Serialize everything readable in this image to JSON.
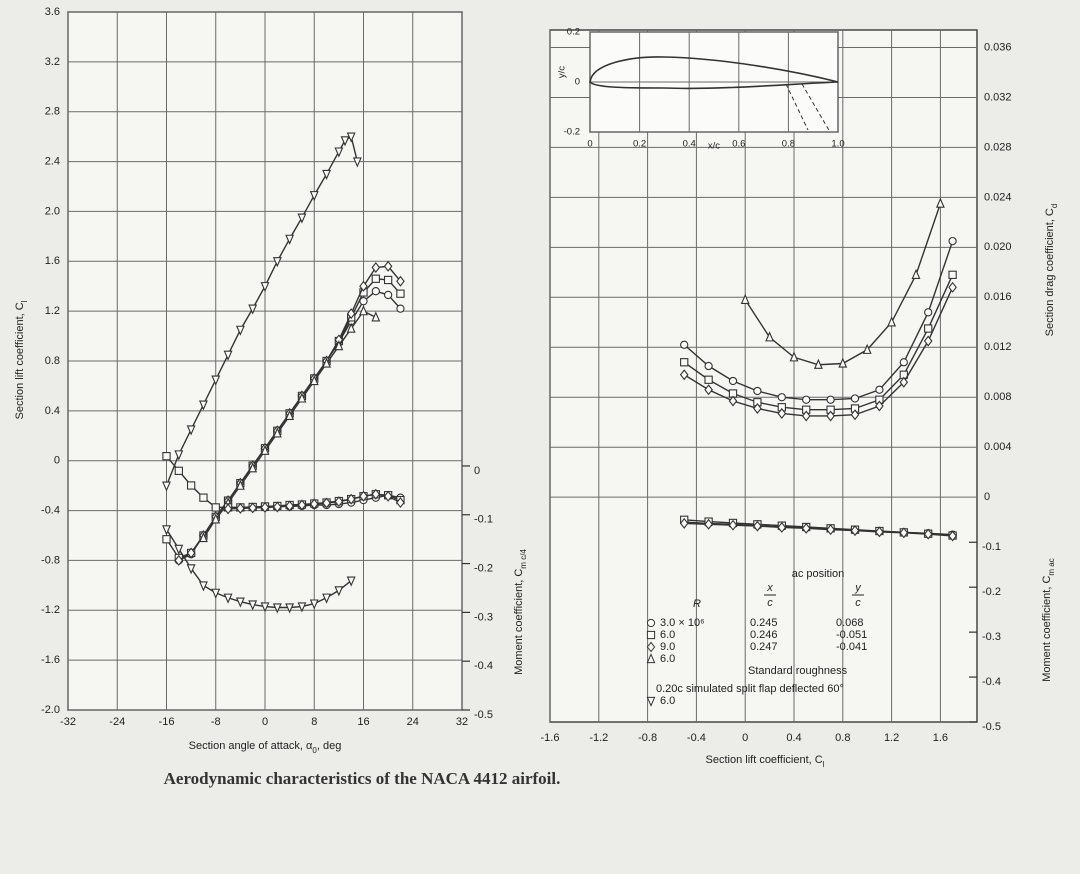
{
  "caption": "Aerodynamic characteristics of the NACA 4412 airfoil.",
  "chart_data": [
    {
      "type": "line",
      "xlabel": {
        "text": "Section angle of attack, α",
        "sub": "0",
        "tail": ", deg"
      },
      "ylabel": {
        "text": "Section lift coefficient, C",
        "sub": "l"
      },
      "y2label": {
        "text": "Moment coefficient, C",
        "sub": "m c/4"
      },
      "xlim": [
        -32,
        32
      ],
      "xticks": [
        -32,
        -24,
        -16,
        -8,
        0,
        8,
        16,
        24,
        32
      ],
      "ylim": [
        -2.0,
        3.6
      ],
      "yticks": [
        3.6,
        3.2,
        2.8,
        2.4,
        {
          "value": 2.0,
          "label": "2.0"
        },
        1.6,
        1.2,
        0.8,
        0.4,
        0,
        -0.4,
        -0.8,
        -1.2,
        -1.6,
        {
          "value": -2.0,
          "label": "-2.0"
        }
      ],
      "y2lim": [
        -0.5,
        0.93
      ],
      "y2ticks": [
        0,
        -0.1,
        -0.2,
        -0.3,
        -0.4,
        -0.5
      ],
      "grid": true,
      "series": [
        {
          "marker": "circle",
          "color": "#333333",
          "x": [
            -14,
            -12,
            -10,
            -8,
            -6,
            -4,
            -2,
            0,
            2,
            4,
            6,
            8,
            10,
            12,
            14,
            16,
            18,
            20,
            22
          ],
          "values": [
            -0.8,
            -0.75,
            -0.6,
            -0.45,
            -0.32,
            -0.18,
            -0.04,
            0.1,
            0.24,
            0.38,
            0.52,
            0.66,
            0.8,
            0.95,
            1.12,
            1.28,
            1.36,
            1.33,
            1.22
          ]
        },
        {
          "marker": "square",
          "color": "#333333",
          "x": [
            -16,
            -14,
            -12,
            -10,
            -8,
            -6,
            -4,
            -2,
            0,
            2,
            4,
            6,
            8,
            10,
            12,
            14,
            16,
            18,
            20,
            22
          ],
          "values": [
            -0.63,
            -0.78,
            -0.74,
            -0.6,
            -0.45,
            -0.32,
            -0.18,
            -0.04,
            0.1,
            0.24,
            0.38,
            0.52,
            0.66,
            0.8,
            0.96,
            1.15,
            1.35,
            1.46,
            1.45,
            1.34
          ]
        },
        {
          "marker": "diamond",
          "color": "#333333",
          "x": [
            -14,
            -12,
            -10,
            -8,
            -6,
            -4,
            -2,
            0,
            2,
            4,
            6,
            8,
            10,
            12,
            14,
            16,
            18,
            20,
            22
          ],
          "values": [
            -0.8,
            -0.74,
            -0.6,
            -0.45,
            -0.32,
            -0.18,
            -0.04,
            0.1,
            0.24,
            0.38,
            0.52,
            0.66,
            0.8,
            0.97,
            1.18,
            1.4,
            1.55,
            1.56,
            1.44
          ]
        },
        {
          "marker": "triangle",
          "color": "#333333",
          "x": [
            -10,
            -8,
            -6,
            -4,
            -2,
            0,
            2,
            4,
            6,
            8,
            10,
            12,
            14,
            16,
            18
          ],
          "values": [
            -0.62,
            -0.47,
            -0.34,
            -0.2,
            -0.06,
            0.08,
            0.22,
            0.36,
            0.5,
            0.64,
            0.78,
            0.92,
            1.06,
            1.2,
            1.15
          ]
        },
        {
          "marker": "triangle-down",
          "color": "#333333",
          "x": [
            -16,
            -14,
            -12,
            -10,
            -8,
            -6,
            -4,
            -2,
            0,
            2,
            4,
            6,
            8,
            10,
            12,
            13,
            14,
            15
          ],
          "values": [
            -0.2,
            0.05,
            0.25,
            0.45,
            0.65,
            0.85,
            1.05,
            1.22,
            1.4,
            1.6,
            1.78,
            1.95,
            2.13,
            2.3,
            2.48,
            2.57,
            2.6,
            2.4
          ]
        },
        {
          "marker": "circle",
          "color": "#333333",
          "axis": "y2",
          "x": [
            -8,
            -6,
            -4,
            -2,
            0,
            2,
            4,
            6,
            8,
            10,
            12,
            14,
            16,
            18,
            20,
            22
          ],
          "values": [
            -0.085,
            -0.085,
            -0.085,
            -0.085,
            -0.085,
            -0.083,
            -0.083,
            -0.082,
            -0.08,
            -0.08,
            -0.078,
            -0.075,
            -0.07,
            -0.065,
            -0.06,
            -0.065
          ]
        },
        {
          "marker": "square",
          "color": "#333333",
          "axis": "y2",
          "x": [
            -16,
            -14,
            -12,
            -10,
            -8,
            -6,
            -4,
            -2,
            0,
            2,
            4,
            6,
            8,
            10,
            12,
            14,
            16,
            18,
            20,
            22
          ],
          "values": [
            0.02,
            -0.01,
            -0.04,
            -0.065,
            -0.085,
            -0.085,
            -0.085,
            -0.084,
            -0.083,
            -0.082,
            -0.08,
            -0.079,
            -0.077,
            -0.075,
            -0.072,
            -0.068,
            -0.062,
            -0.058,
            -0.06,
            -0.07
          ]
        },
        {
          "marker": "diamond",
          "color": "#333333",
          "axis": "y2",
          "x": [
            -6,
            -4,
            -2,
            0,
            2,
            4,
            6,
            8,
            10,
            12,
            14,
            16,
            18,
            20,
            22
          ],
          "values": [
            -0.088,
            -0.087,
            -0.086,
            -0.085,
            -0.084,
            -0.082,
            -0.08,
            -0.078,
            -0.076,
            -0.073,
            -0.068,
            -0.062,
            -0.058,
            -0.062,
            -0.075
          ]
        },
        {
          "marker": "triangle-down",
          "color": "#333333",
          "axis": "y2",
          "x": [
            -16,
            -14,
            -12,
            -10,
            -8,
            -6,
            -4,
            -2,
            0,
            2,
            4,
            6,
            8,
            10,
            12,
            14
          ],
          "values": [
            -0.13,
            -0.17,
            -0.21,
            -0.245,
            -0.26,
            -0.27,
            -0.278,
            -0.284,
            -0.288,
            -0.29,
            -0.29,
            -0.288,
            -0.282,
            -0.27,
            -0.255,
            -0.235
          ]
        }
      ]
    },
    {
      "type": "line",
      "xlabel": {
        "text": "Section lift coefficient, C",
        "sub": "l"
      },
      "ylabel": {
        "text": "Section drag coefficient, C",
        "sub": "d"
      },
      "y2label": {
        "text": "Moment coefficient, C",
        "sub": "m ac"
      },
      "xlim": [
        -1.6,
        1.9
      ],
      "xticks": [
        -1.6,
        -1.2,
        -0.8,
        -0.4,
        0,
        0.4,
        0.8,
        1.2,
        1.6
      ],
      "ylim": [
        -0.018,
        0.0374
      ],
      "yticks": [
        0.036,
        0.032,
        0.028,
        0.024,
        {
          "value": 0.02,
          "label": "0.020"
        },
        0.016,
        0.012,
        0.008,
        0.004,
        0
      ],
      "y2lim": [
        -0.5,
        1.04
      ],
      "y2ticks": [
        -0.1,
        -0.2,
        -0.3,
        -0.4,
        -0.5
      ],
      "grid": true,
      "series": [
        {
          "marker": "circle",
          "color": "#333333",
          "x": [
            -0.5,
            -0.3,
            -0.1,
            0.1,
            0.3,
            0.5,
            0.7,
            0.9,
            1.1,
            1.3,
            1.5,
            1.7
          ],
          "values": [
            0.0122,
            0.0105,
            0.0093,
            0.0085,
            0.008,
            0.0078,
            0.0078,
            0.0079,
            0.0086,
            0.0108,
            0.0148,
            0.0205
          ]
        },
        {
          "marker": "square",
          "color": "#333333",
          "x": [
            -0.5,
            -0.3,
            -0.1,
            0.1,
            0.3,
            0.5,
            0.7,
            0.9,
            1.1,
            1.3,
            1.5,
            1.7
          ],
          "values": [
            0.0108,
            0.0094,
            0.0083,
            0.0076,
            0.0072,
            0.007,
            0.007,
            0.0071,
            0.0078,
            0.0098,
            0.0135,
            0.0178
          ]
        },
        {
          "marker": "diamond",
          "color": "#333333",
          "x": [
            -0.5,
            -0.3,
            -0.1,
            0.1,
            0.3,
            0.5,
            0.7,
            0.9,
            1.1,
            1.3,
            1.5,
            1.7
          ],
          "values": [
            0.0098,
            0.0086,
            0.0077,
            0.0071,
            0.0067,
            0.0065,
            0.0065,
            0.0066,
            0.0073,
            0.0092,
            0.0125,
            0.0168
          ]
        },
        {
          "marker": "triangle",
          "color": "#333333",
          "x": [
            0,
            0.2,
            0.4,
            0.6,
            0.8,
            1.0,
            1.2,
            1.4,
            1.6
          ],
          "values": [
            0.0158,
            0.0128,
            0.0112,
            0.0106,
            0.0107,
            0.0118,
            0.014,
            0.0178,
            0.0235
          ]
        },
        {
          "marker": "circle",
          "color": "#333333",
          "axis": "y2",
          "x": [
            -0.5,
            -0.3,
            -0.1,
            0.1,
            0.3,
            0.5,
            0.7,
            0.9,
            1.1,
            1.3,
            1.5,
            1.7
          ],
          "values": [
            -0.055,
            -0.058,
            -0.06,
            -0.063,
            -0.066,
            -0.068,
            -0.07,
            -0.073,
            -0.076,
            -0.078,
            -0.08,
            -0.083
          ]
        },
        {
          "marker": "square",
          "color": "#333333",
          "axis": "y2",
          "x": [
            -0.5,
            -0.3,
            -0.1,
            0.1,
            0.3,
            0.5,
            0.7,
            0.9,
            1.1,
            1.3,
            1.5,
            1.7
          ],
          "values": [
            -0.05,
            -0.054,
            -0.057,
            -0.06,
            -0.063,
            -0.066,
            -0.069,
            -0.072,
            -0.075,
            -0.078,
            -0.081,
            -0.085
          ]
        },
        {
          "marker": "diamond",
          "color": "#333333",
          "axis": "y2",
          "x": [
            -0.5,
            -0.3,
            -0.1,
            0.1,
            0.3,
            0.5,
            0.7,
            0.9,
            1.1,
            1.3,
            1.5,
            1.7
          ],
          "values": [
            -0.058,
            -0.06,
            -0.062,
            -0.064,
            -0.067,
            -0.069,
            -0.072,
            -0.074,
            -0.077,
            -0.079,
            -0.082,
            -0.086
          ]
        }
      ],
      "legend": {
        "title": "ac position",
        "header": {
          "r": "R",
          "x_num": "x",
          "x_den": "c",
          "y_num": "y",
          "y_den": "c"
        },
        "rows": [
          {
            "marker": "circle",
            "R": "3.0 × 10⁶",
            "x": 0.245,
            "y": 0.068
          },
          {
            "marker": "square",
            "R": "6.0",
            "x": 0.246,
            "y": -0.051
          },
          {
            "marker": "diamond",
            "R": "9.0",
            "x": 0.247,
            "y": -0.041
          },
          {
            "marker": "triangle",
            "R": "6.0",
            "note": "Standard roughness"
          },
          {
            "marker": "triangle-down",
            "R": "6.0",
            "note": "0.20c simulated split flap deflected 60°"
          }
        ]
      }
    },
    {
      "type": "line",
      "xlabel": "x/c",
      "ylabel": "y/c",
      "xlim": [
        0,
        1.0
      ],
      "xticks": [
        0,
        0.2,
        0.4,
        0.6,
        0.8,
        {
          "value": 1.0,
          "label": "1.0"
        }
      ],
      "ylim": [
        -0.2,
        0.2
      ],
      "yticks": [
        0.2,
        0,
        -0.2
      ],
      "grid": true
    }
  ]
}
